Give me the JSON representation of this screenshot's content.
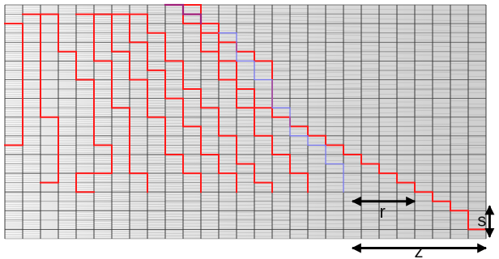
{
  "labels": {
    "r": "r",
    "s": "s",
    "z": "z"
  },
  "colors": {
    "background": "#ffffff",
    "grid_line": "#555555",
    "red_path": "#ff1a1a",
    "blue_path": "#7777ee",
    "purple_path": "#a0207a",
    "arrow": "#000000"
  },
  "grid": {
    "columns": 27,
    "rows": 25,
    "fine_lines_first_column": 0,
    "fine_lines_last_column": 17,
    "shade_first_column": 0,
    "shade_last_column": 0.32
  },
  "red_paths": [
    [
      [
        0,
        2
      ],
      [
        1,
        2
      ],
      [
        1,
        15
      ],
      [
        0,
        15
      ]
    ],
    [
      [
        1,
        1
      ],
      [
        2,
        1
      ],
      [
        2,
        12
      ],
      [
        3,
        12
      ],
      [
        3,
        19
      ],
      [
        2,
        19
      ]
    ],
    [
      [
        2,
        1
      ],
      [
        3,
        1
      ],
      [
        3,
        5
      ],
      [
        4,
        5
      ],
      [
        4,
        8
      ],
      [
        5,
        8
      ],
      [
        5,
        15
      ],
      [
        6,
        15
      ],
      [
        6,
        18
      ],
      [
        4,
        18
      ],
      [
        4,
        20
      ],
      [
        5,
        20
      ]
    ],
    [
      [
        4,
        1
      ],
      [
        5,
        1
      ],
      [
        5,
        6
      ],
      [
        6,
        6
      ],
      [
        6,
        11
      ],
      [
        7,
        11
      ],
      [
        7,
        18
      ],
      [
        8,
        18
      ],
      [
        8,
        20
      ]
    ],
    [
      [
        5,
        1
      ],
      [
        6,
        1
      ],
      [
        6,
        5
      ],
      [
        7,
        5
      ],
      [
        7,
        8
      ],
      [
        8,
        8
      ],
      [
        8,
        12
      ],
      [
        9,
        12
      ],
      [
        9,
        16
      ],
      [
        10,
        16
      ],
      [
        10,
        18
      ],
      [
        11,
        18
      ],
      [
        11,
        20
      ]
    ],
    [
      [
        6,
        1
      ],
      [
        7,
        1
      ],
      [
        7,
        4
      ],
      [
        8,
        4
      ],
      [
        8,
        7
      ],
      [
        9,
        7
      ],
      [
        9,
        10
      ],
      [
        10,
        10
      ],
      [
        10,
        13
      ],
      [
        11,
        13
      ],
      [
        11,
        16
      ],
      [
        12,
        16
      ],
      [
        12,
        18
      ],
      [
        13,
        18
      ],
      [
        13,
        20
      ]
    ],
    [
      [
        7,
        1
      ],
      [
        8,
        1
      ],
      [
        8,
        3
      ],
      [
        9,
        3
      ],
      [
        9,
        6
      ],
      [
        10,
        6
      ],
      [
        10,
        9
      ],
      [
        11,
        9
      ],
      [
        11,
        11
      ],
      [
        12,
        11
      ],
      [
        12,
        14
      ],
      [
        13,
        14
      ],
      [
        13,
        17
      ],
      [
        14,
        17
      ],
      [
        14,
        19
      ],
      [
        15,
        19
      ],
      [
        15,
        20
      ]
    ],
    [
      [
        9,
        0
      ],
      [
        10,
        0
      ],
      [
        10,
        2
      ],
      [
        11,
        2
      ],
      [
        11,
        5
      ],
      [
        12,
        5
      ],
      [
        12,
        8
      ],
      [
        13,
        8
      ],
      [
        13,
        11
      ],
      [
        14,
        11
      ],
      [
        14,
        14
      ],
      [
        15,
        14
      ],
      [
        15,
        16
      ],
      [
        16,
        16
      ],
      [
        16,
        18
      ],
      [
        17,
        18
      ],
      [
        17,
        20
      ]
    ],
    [
      [
        9,
        0
      ],
      [
        11,
        0
      ],
      [
        11,
        3
      ],
      [
        12,
        3
      ],
      [
        12,
        6
      ],
      [
        13,
        6
      ],
      [
        13,
        9
      ],
      [
        14,
        9
      ],
      [
        14,
        11
      ],
      [
        15,
        11
      ],
      [
        15,
        12
      ],
      [
        16,
        12
      ],
      [
        16,
        13
      ],
      [
        17,
        13
      ],
      [
        17,
        14
      ],
      [
        18,
        14
      ],
      [
        18,
        15
      ],
      [
        19,
        15
      ],
      [
        19,
        16
      ],
      [
        20,
        16
      ],
      [
        20,
        17
      ],
      [
        21,
        17
      ],
      [
        21,
        18
      ],
      [
        22,
        18
      ],
      [
        22,
        19
      ],
      [
        23,
        19
      ],
      [
        23,
        20
      ],
      [
        24,
        20
      ],
      [
        24,
        21
      ],
      [
        25,
        21
      ],
      [
        25,
        22
      ],
      [
        26,
        22
      ],
      [
        26,
        24
      ],
      [
        27,
        24
      ]
    ],
    [
      [
        11,
        2
      ],
      [
        12,
        2
      ],
      [
        12,
        4
      ],
      [
        13,
        4
      ],
      [
        13,
        5
      ],
      [
        14,
        5
      ],
      [
        14,
        6
      ],
      [
        15,
        6
      ],
      [
        15,
        12
      ]
    ]
  ],
  "blue_path": [
    [
      12,
      3
    ],
    [
      13,
      3
    ],
    [
      13,
      6
    ],
    [
      14,
      6
    ],
    [
      14,
      8
    ],
    [
      15,
      8
    ],
    [
      15,
      11
    ],
    [
      16,
      11
    ],
    [
      16,
      14
    ],
    [
      17,
      14
    ],
    [
      17,
      15
    ],
    [
      18,
      15
    ],
    [
      18,
      17
    ],
    [
      19,
      17
    ],
    [
      19,
      20
    ]
  ],
  "purple_path": [
    [
      9,
      0
    ],
    [
      10,
      0
    ],
    [
      10,
      1
    ],
    [
      11,
      1
    ],
    [
      11,
      2
    ]
  ],
  "dimensions": {
    "r": {
      "from": [
        19.5,
        21
      ],
      "to": [
        23,
        21
      ]
    },
    "s": {
      "from": [
        27.2,
        21.5
      ],
      "to": [
        27.2,
        24.8
      ]
    },
    "z": {
      "from": [
        19.5,
        26
      ],
      "to": [
        27,
        26
      ]
    }
  }
}
